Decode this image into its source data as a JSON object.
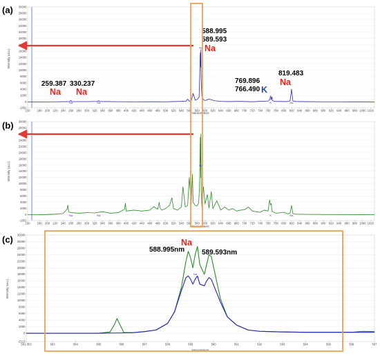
{
  "chart_data": [
    {
      "type": "line",
      "panel_label": "(a)",
      "xlabel": "Nanometers",
      "ylabel": "Intensity (a.u.)",
      "xlim": [
        150,
        1030
      ],
      "ylim": [
        -1852,
        30000
      ],
      "y_ticks": [
        "30000",
        "28000",
        "26000",
        "24000",
        "22000",
        "20000",
        "18000",
        "16000",
        "14000",
        "12000",
        "10000",
        "8000",
        "6000",
        "4000",
        "2000",
        "0",
        "-1852"
      ],
      "x_ticks": [
        "150",
        "180",
        "200",
        "220",
        "240",
        "260",
        "280",
        "300",
        "320",
        "340",
        "360",
        "380",
        "400",
        "420",
        "440",
        "460",
        "480",
        "500",
        "520",
        "540",
        "560",
        "580",
        "600",
        "620",
        "640",
        "660",
        "680",
        "700",
        "720",
        "740",
        "760",
        "780",
        "800",
        "820",
        "840",
        "860",
        "880",
        "900",
        "920",
        "940",
        "960",
        "980",
        "1000",
        "1020"
      ],
      "series": [
        {
          "color": "#2a2ab0",
          "x": [
            150,
            180,
            220,
            256,
            259.4,
            262,
            300,
            327,
            330.2,
            333,
            380,
            420,
            470,
            500,
            520,
            540,
            552,
            556,
            560,
            565,
            570,
            575,
            580,
            585,
            588,
            589,
            589.6,
            590.2,
            592,
            596,
            600,
            610,
            625,
            640,
            660,
            690,
            720,
            750,
            760,
            764,
            766.5,
            768,
            769.9,
            771,
            775,
            790,
            805,
            812,
            816,
            819.5,
            823,
            830,
            860,
            900,
            950,
            1000,
            1030
          ],
          "y": [
            0,
            0,
            60,
            120,
            450,
            130,
            110,
            160,
            420,
            150,
            90,
            60,
            70,
            60,
            120,
            180,
            250,
            900,
            250,
            400,
            2700,
            600,
            800,
            1500,
            15500,
            11000,
            16500,
            7000,
            2000,
            700,
            450,
            900,
            380,
            200,
            120,
            200,
            70,
            250,
            300,
            700,
            1900,
            700,
            1600,
            500,
            180,
            150,
            130,
            200,
            400,
            4000,
            300,
            150,
            100,
            60,
            50,
            40,
            30
          ]
        }
      ],
      "annotations": [
        "588.995",
        "589.593",
        "Na",
        "259.387",
        "330.237",
        "Na",
        "Na",
        "769.896",
        "766.490",
        "K",
        "819.483",
        "Na"
      ],
      "peak_labels": [
        "Na",
        "Na",
        "Na",
        "K",
        "Na"
      ]
    },
    {
      "type": "line",
      "panel_label": "(b)",
      "xlabel": "Nanometers",
      "ylabel": "Intensity (a.u.)",
      "xlim": [
        150,
        1030
      ],
      "ylim": [
        -1852,
        30000
      ],
      "y_ticks": [
        "30000",
        "28000",
        "26000",
        "24000",
        "22000",
        "20000",
        "18000",
        "16000",
        "14000",
        "12000",
        "10000",
        "8000",
        "6000",
        "4000",
        "2000",
        "0",
        "-1852"
      ],
      "x_ticks": [
        "150",
        "180",
        "200",
        "220",
        "240",
        "260",
        "280",
        "300",
        "320",
        "340",
        "360",
        "380",
        "400",
        "420",
        "440",
        "460",
        "480",
        "500",
        "520",
        "540",
        "560",
        "580",
        "600",
        "620",
        "640",
        "660",
        "680",
        "700",
        "720",
        "740",
        "760",
        "780",
        "800",
        "820",
        "840",
        "860",
        "880",
        "900",
        "920",
        "940",
        "960",
        "980",
        "1000",
        "1020"
      ],
      "series": [
        {
          "color": "#2a8a2a",
          "x": [
            150,
            180,
            220,
            240,
            250,
            252,
            254,
            260,
            280,
            300,
            320,
            340,
            360,
            380,
            396,
            398,
            400,
            420,
            440,
            460,
            470,
            480,
            484,
            486,
            490,
            500,
            510,
            516,
            520,
            530,
            540,
            544,
            550,
            556,
            560,
            565,
            568,
            570,
            575,
            580,
            584,
            586,
            588,
            589,
            589.6,
            590.2,
            592,
            596,
            600,
            606,
            610,
            616,
            620,
            630,
            640,
            650,
            660,
            670,
            680,
            690,
            700,
            710,
            720,
            740,
            750,
            760,
            762,
            764,
            766,
            768,
            770,
            772,
            780,
            800,
            810,
            816,
            819.5,
            823,
            830,
            850,
            900,
            950,
            1000,
            1030
          ],
          "y": [
            0,
            0,
            200,
            400,
            1800,
            3100,
            900,
            700,
            500,
            700,
            600,
            1000,
            500,
            700,
            1800,
            3700,
            1200,
            1500,
            1200,
            1500,
            2600,
            1800,
            4000,
            2200,
            1500,
            2000,
            3000,
            5500,
            2000,
            1500,
            2500,
            9000,
            2500,
            3000,
            12000,
            3500,
            13000,
            4000,
            3000,
            2800,
            4000,
            9000,
            25000,
            12000,
            26000,
            8000,
            2500,
            9000,
            3500,
            6500,
            2200,
            7500,
            2000,
            4500,
            1500,
            2500,
            1500,
            2000,
            1200,
            1500,
            1600,
            2500,
            1200,
            800,
            1500,
            1200,
            3000,
            4800,
            3200,
            3600,
            1200,
            1000,
            500,
            800,
            300,
            500,
            3000,
            400,
            200,
            150,
            100,
            80,
            60,
            40
          ]
        }
      ],
      "annotations": [],
      "peak_labels": [
        "Na",
        "Na",
        "Na",
        "K",
        "Na"
      ]
    },
    {
      "type": "line",
      "panel_label": "(c)",
      "xlabel": "Nanometers",
      "ylabel": "Intensity (a.u.)",
      "xlim": [
        581.853,
        597
      ],
      "ylim": [
        -2513,
        30000
      ],
      "y_ticks": [
        "30000",
        "28000",
        "26000",
        "24000",
        "22000",
        "20000",
        "18000",
        "16000",
        "14000",
        "12000",
        "10000",
        "8000",
        "6000",
        "4000",
        "2000",
        "0",
        "-2513"
      ],
      "x_ticks": [
        "581.853",
        "583",
        "584",
        "585",
        "586",
        "587",
        "588",
        "589",
        "590",
        "591",
        "592",
        "593",
        "594",
        "595",
        "596",
        "597"
      ],
      "series": [
        {
          "color": "#2a8a2a",
          "x": [
            581.853,
            583,
            584,
            585,
            585.5,
            585.7,
            585.8,
            585.9,
            586.1,
            586.5,
            587,
            587.5,
            588,
            588.3,
            588.6,
            588.8,
            588.9,
            589.0,
            589.1,
            589.2,
            589.3,
            589.4,
            589.6,
            589.7,
            589.8,
            589.9,
            590.1,
            590.3,
            590.6,
            591,
            591.5,
            592,
            593,
            594,
            595,
            596,
            596.5,
            597
          ],
          "y": [
            0,
            0,
            0,
            0,
            400,
            2800,
            4500,
            3000,
            200,
            200,
            500,
            1000,
            3000,
            6500,
            14000,
            22000,
            25000,
            23000,
            20000,
            24000,
            26500,
            21000,
            18000,
            21000,
            24000,
            23500,
            17000,
            10500,
            5000,
            2500,
            1000,
            600,
            400,
            300,
            300,
            300,
            600,
            500
          ]
        },
        {
          "color": "#2222bb",
          "x": [
            581.853,
            583,
            584,
            585,
            586,
            586.5,
            587,
            587.5,
            588,
            588.3,
            588.6,
            588.8,
            588.9,
            589.0,
            589.1,
            589.2,
            589.3,
            589.4,
            589.6,
            589.7,
            589.8,
            589.9,
            590.1,
            590.3,
            590.6,
            591,
            591.5,
            592,
            593,
            594,
            595,
            596,
            597
          ],
          "y": [
            0,
            0,
            0,
            0,
            100,
            200,
            500,
            1000,
            3000,
            6500,
            13000,
            17000,
            17500,
            16500,
            15000,
            16500,
            17500,
            15000,
            14500,
            16000,
            17000,
            16500,
            13000,
            9500,
            5000,
            2500,
            1000,
            600,
            400,
            300,
            300,
            300,
            300
          ]
        }
      ],
      "annotations": [
        "588.995nm",
        "Na",
        "589.593nm"
      ],
      "peak_labels": [
        "Na"
      ]
    }
  ]
}
